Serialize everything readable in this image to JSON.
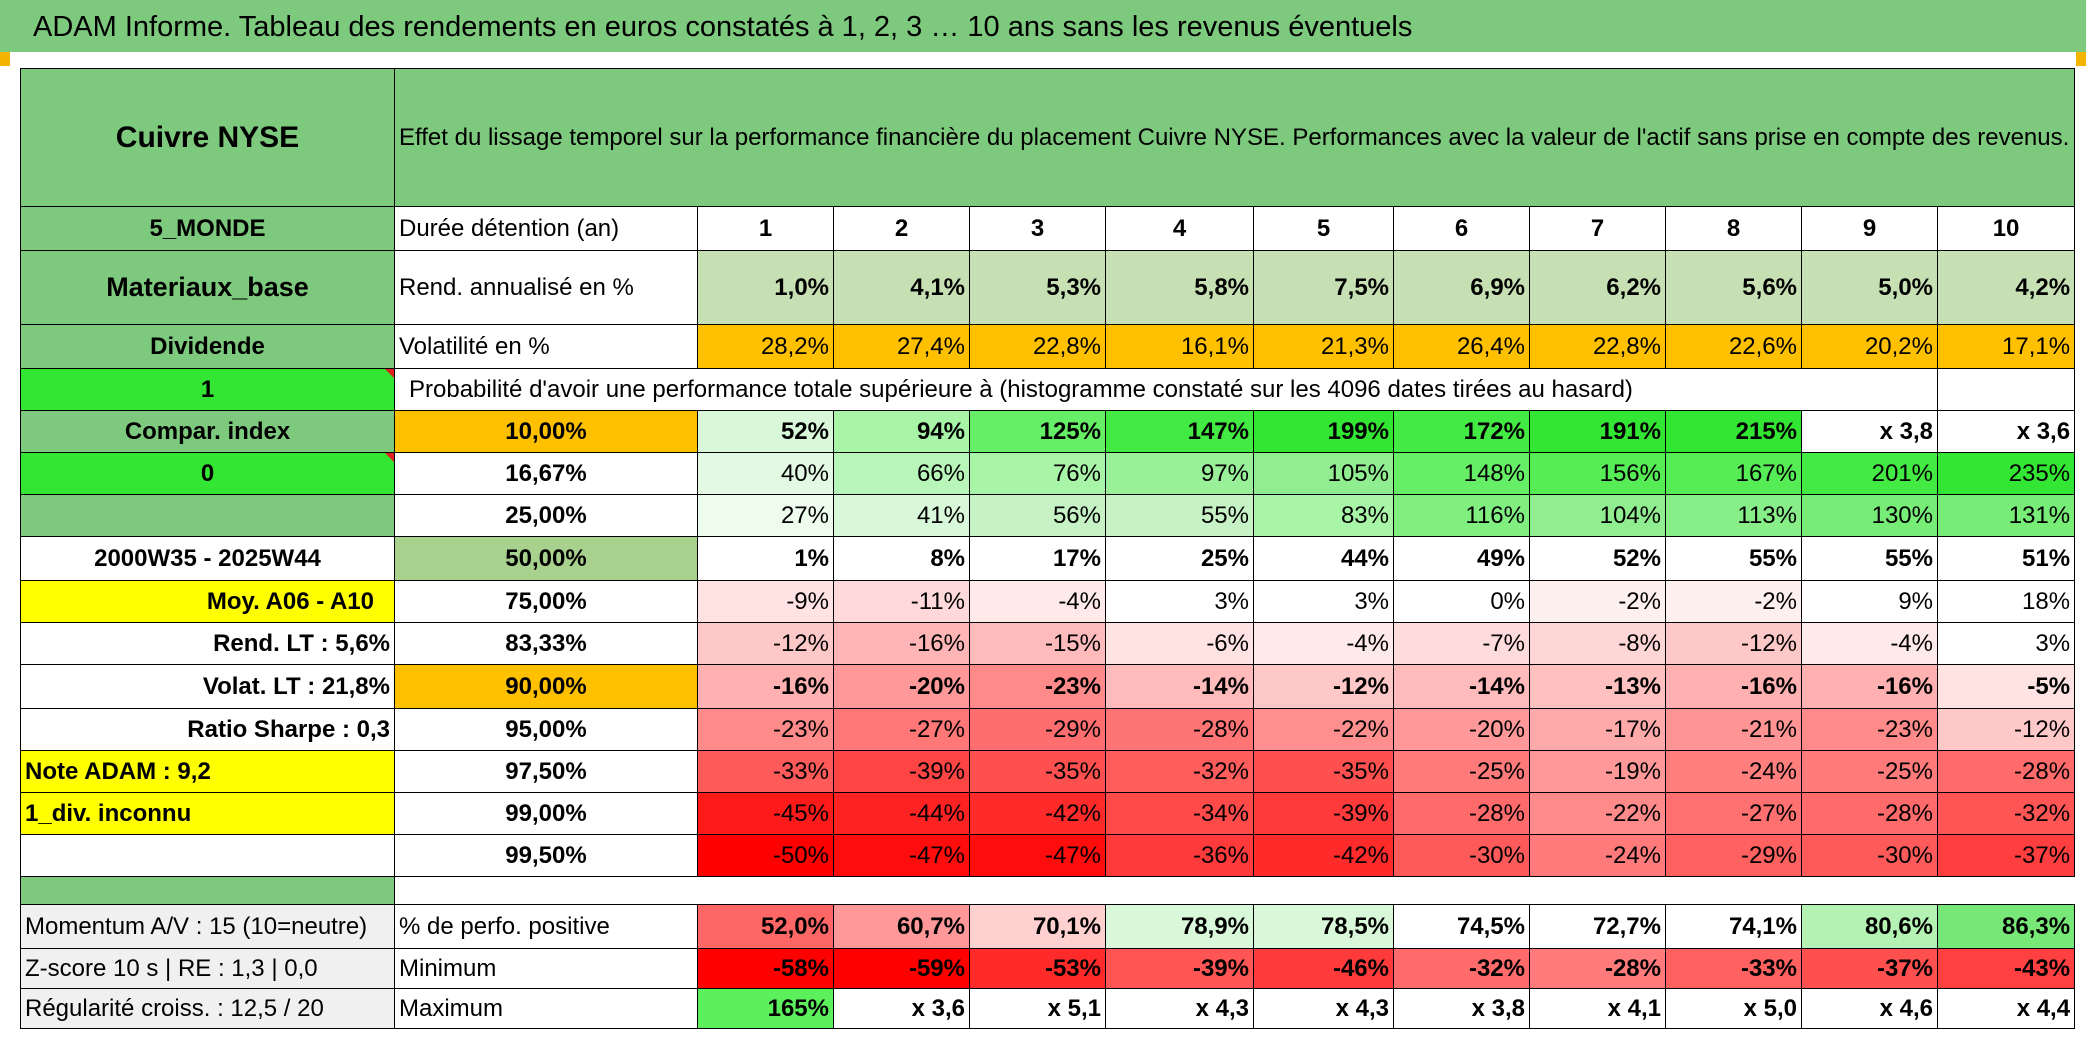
{
  "title": "ADAM Informe. Tableau des rendements en euros constatés à 1, 2, 3 … 10 ans sans les revenus éventuels",
  "colors": {
    "header_green": "#7dc97d",
    "accent_orange": "#ffc000",
    "highlight_yellow": "#ffff00",
    "bright_green": "#33e633",
    "text_red": "#e60000"
  },
  "left": {
    "asset": "Cuivre NYSE",
    "region": "5_MONDE",
    "sector": "Materiaux_base",
    "dividend_label": "Dividende",
    "flag_value": "1",
    "compare_label": "Compar. index",
    "compare_value": "0",
    "period": "2000W35 - 2025W44",
    "average": "Moy. A06 - A10",
    "rend_lt": "Rend. LT :    5,6%",
    "volat_lt": "Volat. LT :   21,8%",
    "sharpe": "Ratio Sharpe :    0,3",
    "note": "Note ADAM : 9,2",
    "div_info": "1_div. inconnu",
    "momentum": "Momentum A/V : 15 (10=neutre)",
    "zscore": "Z-score 10 s | RE : 1,3 | 0,0",
    "regularite": "Régularité croiss. : 12,5 / 20"
  },
  "header_text": "Effet du lissage temporel sur la performance financière du placement Cuivre NYSE. Performances avec la valeur de l'actif sans prise en compte des revenus.",
  "years_label": "Durée détention (an)",
  "years": [
    "1",
    "2",
    "3",
    "4",
    "5",
    "6",
    "7",
    "8",
    "9",
    "10"
  ],
  "rend_label": "Rend. annualisé en %",
  "rend": [
    "1,0%",
    "4,1%",
    "5,3%",
    "5,8%",
    "7,5%",
    "6,9%",
    "6,2%",
    "5,6%",
    "5,0%",
    "4,2%"
  ],
  "vol_label": "Volatilité en %",
  "vol": [
    "28,2%",
    "27,4%",
    "22,8%",
    "16,1%",
    "21,3%",
    "26,4%",
    "22,8%",
    "22,6%",
    "20,2%",
    "17,1%"
  ],
  "prob_text": "Probabilité d'avoir une performance totale supérieure à (histogramme constaté sur les 4096 dates tirées au hasard)",
  "quantiles": [
    {
      "label": "10,00%",
      "values": [
        "52%",
        "94%",
        "125%",
        "147%",
        "199%",
        "172%",
        "191%",
        "215%",
        "x 3,8",
        "x 3,6"
      ]
    },
    {
      "label": "16,67%",
      "values": [
        "40%",
        "66%",
        "76%",
        "97%",
        "105%",
        "148%",
        "156%",
        "167%",
        "201%",
        "235%"
      ]
    },
    {
      "label": "25,00%",
      "values": [
        "27%",
        "41%",
        "56%",
        "55%",
        "83%",
        "116%",
        "104%",
        "113%",
        "130%",
        "131%"
      ]
    },
    {
      "label": "50,00%",
      "values": [
        "1%",
        "8%",
        "17%",
        "25%",
        "44%",
        "49%",
        "52%",
        "55%",
        "55%",
        "51%"
      ]
    },
    {
      "label": "75,00%",
      "values": [
        "-9%",
        "-11%",
        "-4%",
        "3%",
        "3%",
        "0%",
        "-2%",
        "-2%",
        "9%",
        "18%"
      ]
    },
    {
      "label": "83,33%",
      "values": [
        "-12%",
        "-16%",
        "-15%",
        "-6%",
        "-4%",
        "-7%",
        "-8%",
        "-12%",
        "-4%",
        "3%"
      ]
    },
    {
      "label": "90,00%",
      "values": [
        "-16%",
        "-20%",
        "-23%",
        "-14%",
        "-12%",
        "-14%",
        "-13%",
        "-16%",
        "-16%",
        "-5%"
      ]
    },
    {
      "label": "95,00%",
      "values": [
        "-23%",
        "-27%",
        "-29%",
        "-28%",
        "-22%",
        "-20%",
        "-17%",
        "-21%",
        "-23%",
        "-12%"
      ]
    },
    {
      "label": "97,50%",
      "values": [
        "-33%",
        "-39%",
        "-35%",
        "-32%",
        "-35%",
        "-25%",
        "-19%",
        "-24%",
        "-25%",
        "-28%"
      ]
    },
    {
      "label": "99,00%",
      "values": [
        "-45%",
        "-44%",
        "-42%",
        "-34%",
        "-39%",
        "-28%",
        "-22%",
        "-27%",
        "-28%",
        "-32%"
      ]
    },
    {
      "label": "99,50%",
      "values": [
        "-50%",
        "-47%",
        "-47%",
        "-36%",
        "-42%",
        "-30%",
        "-24%",
        "-29%",
        "-30%",
        "-37%"
      ]
    }
  ],
  "stats": [
    {
      "label": "% de perfo. positive",
      "values": [
        "52,0%",
        "60,7%",
        "70,1%",
        "78,9%",
        "78,5%",
        "74,5%",
        "72,7%",
        "74,1%",
        "80,6%",
        "86,3%"
      ]
    },
    {
      "label": "Minimum",
      "values": [
        "-58%",
        "-59%",
        "-53%",
        "-39%",
        "-46%",
        "-32%",
        "-28%",
        "-33%",
        "-37%",
        "-43%"
      ]
    },
    {
      "label": "Maximum",
      "values": [
        "165%",
        "x 3,6",
        "x 5,1",
        "x 4,3",
        "x 4,3",
        "x 3,8",
        "x 4,1",
        "x 5,0",
        "x 4,6",
        "x 4,4"
      ]
    }
  ]
}
